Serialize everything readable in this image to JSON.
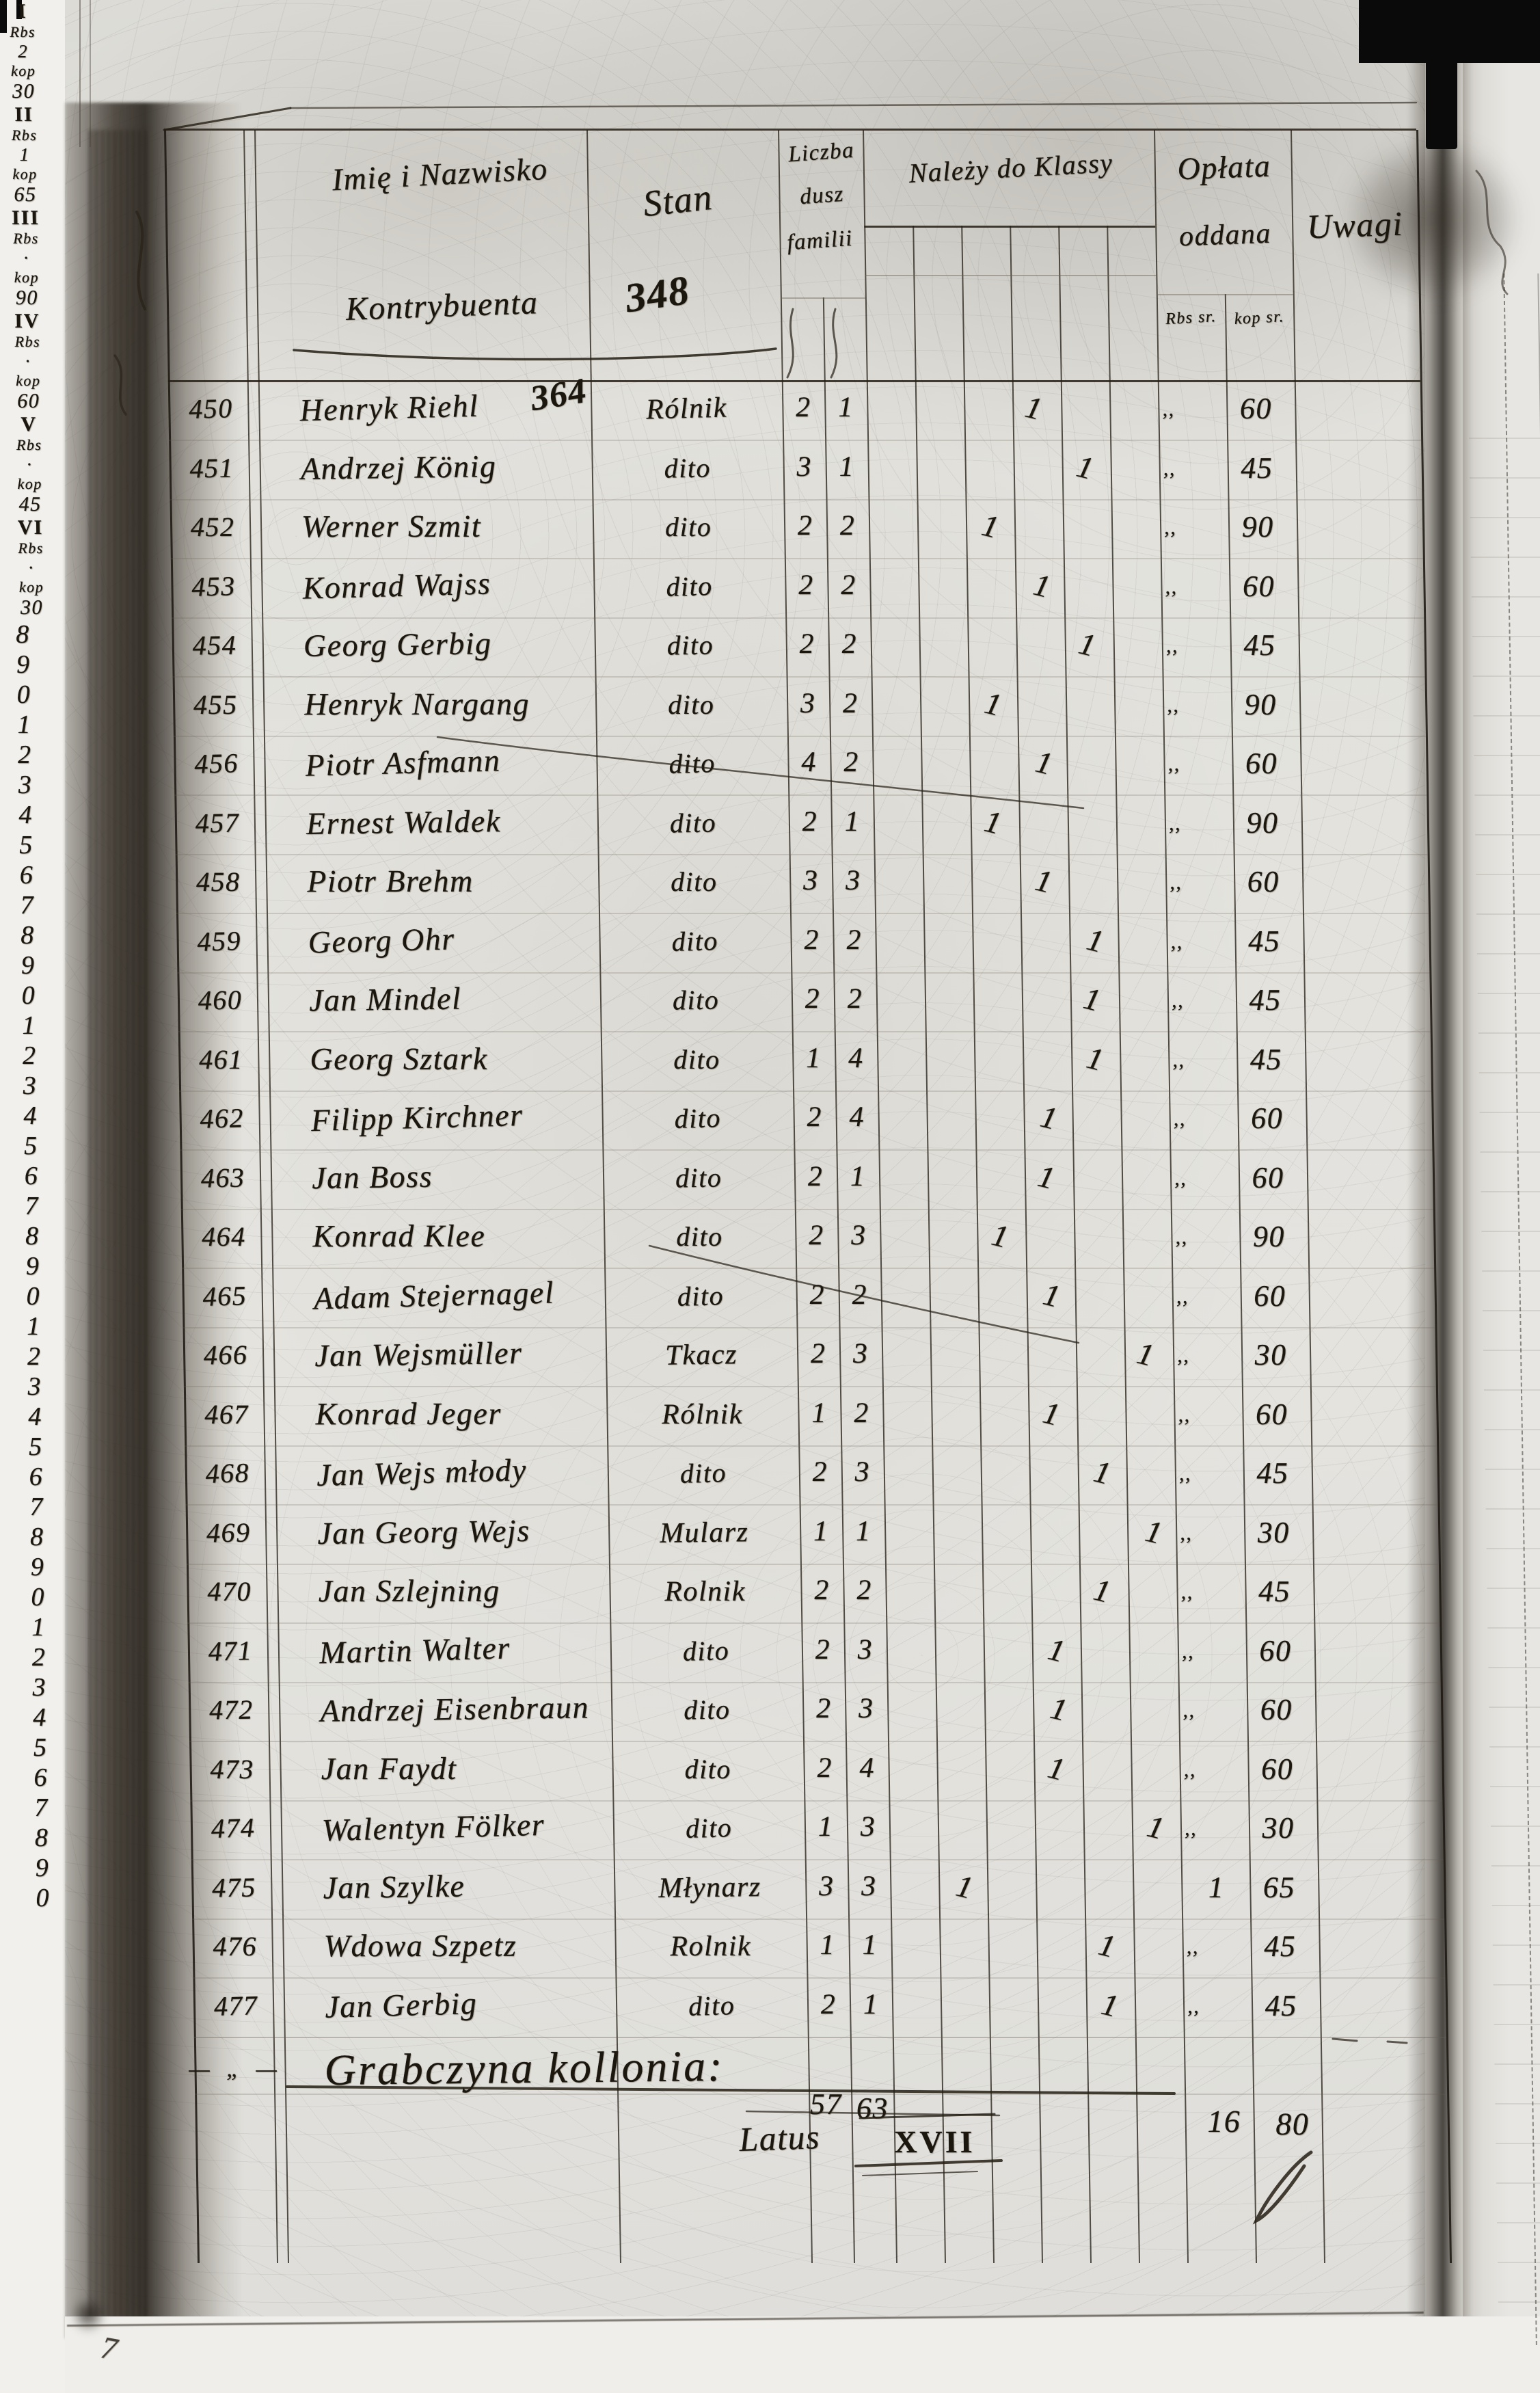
{
  "header": {
    "name_line1": "Imię i Nazwisko",
    "name_line2": "Kontrybuenta",
    "stan_label": "Stan",
    "stan_annotation": "348",
    "souls_line1": "Liczba",
    "souls_line2": "dusz",
    "souls_line3": "familii",
    "class_group_label": "Należy do Klassy",
    "class_unit_top": "Rbs",
    "class_unit_bottom": "kop",
    "oplata_line1": "Opłata",
    "oplata_line2": "oddana",
    "oplata_sub_left": "Rbs sr.",
    "oplata_sub_right": "kop sr.",
    "uwagi_label": "Uwagi"
  },
  "classes": [
    {
      "numeral": "I",
      "rb": "2",
      "kop": "30"
    },
    {
      "numeral": "II",
      "rb": "1",
      "kop": "65"
    },
    {
      "numeral": "III",
      "rb": "·",
      "kop": "90"
    },
    {
      "numeral": "IV",
      "rb": "·",
      "kop": "60"
    },
    {
      "numeral": "V",
      "rb": "·",
      "kop": "45"
    },
    {
      "numeral": "VI",
      "rb": "·",
      "kop": "30"
    }
  ],
  "rows": [
    {
      "n": "450",
      "name": "Henryk Riehl",
      "note": "364",
      "stan": "Rólnik",
      "s1": "2",
      "s2": "1",
      "cls": "IV",
      "rb": ",,",
      "kop": "60"
    },
    {
      "n": "451",
      "name": "Andrzej König",
      "note": "",
      "stan": "dito",
      "s1": "3",
      "s2": "1",
      "cls": "V",
      "rb": ",,",
      "kop": "45"
    },
    {
      "n": "452",
      "name": "Werner Szmit",
      "note": "",
      "stan": "dito",
      "s1": "2",
      "s2": "2",
      "cls": "III",
      "rb": ",,",
      "kop": "90"
    },
    {
      "n": "453",
      "name": "Konrad Wajss",
      "note": "",
      "stan": "dito",
      "s1": "2",
      "s2": "2",
      "cls": "IV",
      "rb": ",,",
      "kop": "60"
    },
    {
      "n": "454",
      "name": "Georg Gerbig",
      "note": "",
      "stan": "dito",
      "s1": "2",
      "s2": "2",
      "cls": "V",
      "rb": ",,",
      "kop": "45"
    },
    {
      "n": "455",
      "name": "Henryk Nargang",
      "note": "",
      "stan": "dito",
      "s1": "3",
      "s2": "2",
      "cls": "III",
      "rb": ",,",
      "kop": "90"
    },
    {
      "n": "456",
      "name": "Piotr Asfmann",
      "note": "",
      "stan": "dito",
      "s1": "4",
      "s2": "2",
      "cls": "IV",
      "rb": ",,",
      "kop": "60"
    },
    {
      "n": "457",
      "name": "Ernest Waldek",
      "note": "",
      "stan": "dito",
      "s1": "2",
      "s2": "1",
      "cls": "III",
      "rb": ",,",
      "kop": "90"
    },
    {
      "n": "458",
      "name": "Piotr Brehm",
      "note": "",
      "stan": "dito",
      "s1": "3",
      "s2": "3",
      "cls": "IV",
      "rb": ",,",
      "kop": "60"
    },
    {
      "n": "459",
      "name": "Georg Ohr",
      "note": "",
      "stan": "dito",
      "s1": "2",
      "s2": "2",
      "cls": "V",
      "rb": ",,",
      "kop": "45"
    },
    {
      "n": "460",
      "name": "Jan Mindel",
      "note": "",
      "stan": "dito",
      "s1": "2",
      "s2": "2",
      "cls": "V",
      "rb": ",,",
      "kop": "45"
    },
    {
      "n": "461",
      "name": "Georg Sztark",
      "note": "",
      "stan": "dito",
      "s1": "1",
      "s2": "4",
      "cls": "V",
      "rb": ",,",
      "kop": "45"
    },
    {
      "n": "462",
      "name": "Filipp Kirchner",
      "note": "",
      "stan": "dito",
      "s1": "2",
      "s2": "4",
      "cls": "IV",
      "rb": ",,",
      "kop": "60"
    },
    {
      "n": "463",
      "name": "Jan Boss",
      "note": "",
      "stan": "dito",
      "s1": "2",
      "s2": "1",
      "cls": "IV",
      "rb": ",,",
      "kop": "60"
    },
    {
      "n": "464",
      "name": "Konrad Klee",
      "note": "",
      "stan": "dito",
      "s1": "2",
      "s2": "3",
      "cls": "III",
      "rb": ",,",
      "kop": "90"
    },
    {
      "n": "465",
      "name": "Adam Stejernagel",
      "note": "",
      "stan": "dito",
      "s1": "2",
      "s2": "2",
      "cls": "IV",
      "rb": ",,",
      "kop": "60"
    },
    {
      "n": "466",
      "name": "Jan Wejsmüller",
      "note": "",
      "stan": "Tkacz",
      "s1": "2",
      "s2": "3",
      "cls": "VI",
      "rb": ",,",
      "kop": "30"
    },
    {
      "n": "467",
      "name": "Konrad Jeger",
      "note": "",
      "stan": "Rólnik",
      "s1": "1",
      "s2": "2",
      "cls": "IV",
      "rb": ",,",
      "kop": "60"
    },
    {
      "n": "468",
      "name": "Jan Wejs młody",
      "note": "",
      "stan": "dito",
      "s1": "2",
      "s2": "3",
      "cls": "V",
      "rb": ",,",
      "kop": "45"
    },
    {
      "n": "469",
      "name": "Jan Georg Wejs",
      "note": "",
      "stan": "Mularz",
      "s1": "1",
      "s2": "1",
      "cls": "VI",
      "rb": ",,",
      "kop": "30"
    },
    {
      "n": "470",
      "name": "Jan Szlejning",
      "note": "",
      "stan": "Rolnik",
      "s1": "2",
      "s2": "2",
      "cls": "V",
      "rb": ",,",
      "kop": "45"
    },
    {
      "n": "471",
      "name": "Martin Walter",
      "note": "",
      "stan": "dito",
      "s1": "2",
      "s2": "3",
      "cls": "IV",
      "rb": ",,",
      "kop": "60"
    },
    {
      "n": "472",
      "name": "Andrzej Eisenbraun",
      "note": "",
      "stan": "dito",
      "s1": "2",
      "s2": "3",
      "cls": "IV",
      "rb": ",,",
      "kop": "60"
    },
    {
      "n": "473",
      "name": "Jan Faydt",
      "note": "",
      "stan": "dito",
      "s1": "2",
      "s2": "4",
      "cls": "IV",
      "rb": ",,",
      "kop": "60"
    },
    {
      "n": "474",
      "name": "Walentyn Fölker",
      "note": "",
      "stan": "dito",
      "s1": "1",
      "s2": "3",
      "cls": "VI",
      "rb": ",,",
      "kop": "30"
    },
    {
      "n": "475",
      "name": "Jan Szylke",
      "note": "",
      "stan": "Młynarz",
      "s1": "3",
      "s2": "3",
      "cls": "II",
      "rb": "1",
      "kop": "65"
    },
    {
      "n": "476",
      "name": "Wdowa Szpetz",
      "note": "",
      "stan": "Rolnik",
      "s1": "1",
      "s2": "1",
      "cls": "V",
      "rb": ",,",
      "kop": "45"
    },
    {
      "n": "477",
      "name": "Jan Gerbig",
      "note": "",
      "stan": "dito",
      "s1": "2",
      "s2": "1",
      "cls": "V",
      "rb": ",,",
      "kop": "45"
    }
  ],
  "section": {
    "title": "Grabczyna kollonia:",
    "num_marks": "—  „  —"
  },
  "summary": {
    "label": "Latus",
    "numeral": "XVII",
    "souls_1": "57",
    "souls_2": "63",
    "rb": "16",
    "kop": "80"
  },
  "margin_mark": "7",
  "facing_page": {
    "digits": [
      "8",
      "9",
      "0",
      "1",
      "2",
      "3",
      "4",
      "5",
      "6",
      "7",
      "8",
      "9",
      "0",
      "1",
      "2",
      "3",
      "4",
      "5",
      "6",
      "7",
      "8",
      "9",
      "0",
      "1",
      "2",
      "3",
      "4",
      "5",
      "6",
      "7",
      "8",
      "9",
      "0",
      "1",
      "2",
      "3",
      "4",
      "5",
      "6",
      "7",
      "8",
      "9",
      "0"
    ]
  }
}
